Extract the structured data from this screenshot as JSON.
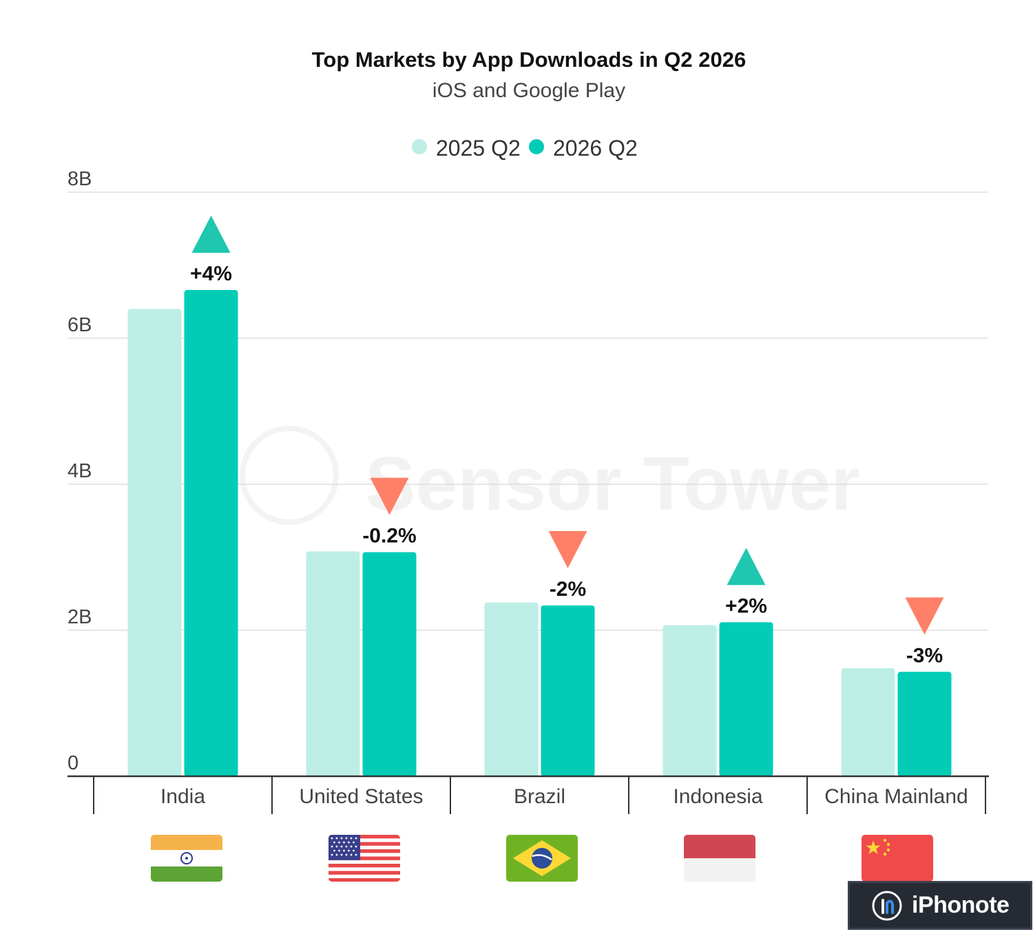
{
  "chart_data": {
    "type": "bar",
    "title": "Top Markets by App Downloads in Q2 2026",
    "subtitle": "iOS and Google Play",
    "watermark": "Sensor Tower",
    "categories": [
      "India",
      "United States",
      "Brazil",
      "Indonesia",
      "China Mainland"
    ],
    "series": [
      {
        "name": "2025 Q2",
        "color": "#bdeee5",
        "values": [
          6.4,
          3.08,
          2.38,
          2.07,
          1.48
        ]
      },
      {
        "name": "2026 Q2",
        "color": "#02ccb6",
        "values": [
          6.66,
          3.07,
          2.34,
          2.11,
          1.43
        ]
      }
    ],
    "changes": [
      {
        "label": "+4%",
        "direction": "up"
      },
      {
        "label": "-0.2%",
        "direction": "down"
      },
      {
        "label": "-2%",
        "direction": "down"
      },
      {
        "label": "+2%",
        "direction": "up"
      },
      {
        "label": "-3%",
        "direction": "down"
      }
    ],
    "flags": [
      "india-flag-icon",
      "united-states-flag-icon",
      "brazil-flag-icon",
      "indonesia-flag-icon",
      "china-flag-icon"
    ],
    "ylim": [
      0,
      8
    ],
    "yticks": [
      0,
      2,
      4,
      6,
      8
    ],
    "ytick_labels": [
      "0",
      "2B",
      "4B",
      "6B",
      "8B"
    ],
    "grid": true,
    "legend_position": "top-center",
    "colors": {
      "up": "#1ec7ae",
      "down": "#ff8068",
      "grid": "#dddddd",
      "axis": "#333333"
    }
  },
  "badge": {
    "text": "iPhonote",
    "icon": "iphonote-logo-icon"
  }
}
